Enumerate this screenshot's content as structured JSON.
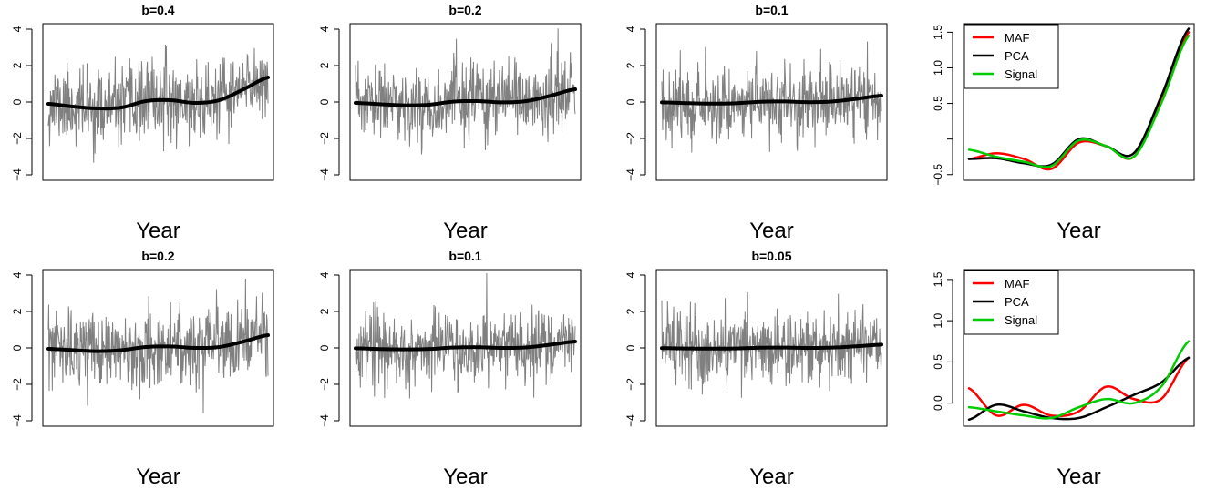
{
  "chart_data": [
    {
      "type": "line",
      "title": "b=0.4",
      "xlabel": "Year",
      "ylim": [
        -4.3,
        4.3
      ],
      "yticks": [
        "4",
        "2",
        "0",
        "−2",
        "−4"
      ],
      "series": [
        {
          "role": "noisy",
          "color": "#808080",
          "values": [],
          "noise_sd": 1.05,
          "seed": 11
        },
        {
          "role": "smooth",
          "color": "#000000",
          "values": [
            -0.1,
            -0.25,
            -0.35,
            -0.3,
            0.05,
            0.1,
            -0.05,
            0.1,
            0.7,
            1.35
          ]
        }
      ]
    },
    {
      "type": "line",
      "title": "b=0.2",
      "xlabel": "Year",
      "ylim": [
        -4.3,
        4.3
      ],
      "yticks": [
        "4",
        "2",
        "0",
        "−2",
        "−4"
      ],
      "series": [
        {
          "role": "noisy",
          "color": "#808080",
          "values": [],
          "noise_sd": 1.05,
          "seed": 23
        },
        {
          "role": "smooth",
          "color": "#000000",
          "values": [
            -0.05,
            -0.12,
            -0.18,
            -0.15,
            0.02,
            0.05,
            -0.02,
            0.05,
            0.35,
            0.7
          ]
        }
      ]
    },
    {
      "type": "line",
      "title": "b=0.1",
      "xlabel": "Year",
      "ylim": [
        -4.3,
        4.3
      ],
      "yticks": [
        "4",
        "2",
        "0",
        "−2",
        "−4"
      ],
      "series": [
        {
          "role": "noisy",
          "color": "#808080",
          "values": [],
          "noise_sd": 1.0,
          "seed": 37
        },
        {
          "role": "smooth",
          "color": "#000000",
          "values": [
            -0.02,
            -0.06,
            -0.09,
            -0.07,
            0.01,
            0.03,
            -0.01,
            0.03,
            0.18,
            0.35
          ]
        }
      ]
    },
    {
      "type": "line",
      "title": "",
      "xlabel": "Year",
      "ylim": [
        -0.6,
        1.6
      ],
      "yticks": [
        "1.5",
        "1.0",
        "0.5",
        "",
        "−0.5"
      ],
      "legend": {
        "position": "top-left",
        "entries": [
          "MAF",
          "PCA",
          "Signal"
        ]
      },
      "series": [
        {
          "name": "MAF",
          "color": "#ff0000",
          "values": [
            -0.28,
            -0.2,
            -0.28,
            -0.42,
            -0.05,
            -0.1,
            -0.25,
            0.55,
            1.5
          ]
        },
        {
          "name": "PCA",
          "color": "#000000",
          "values": [
            -0.28,
            -0.27,
            -0.34,
            -0.36,
            0.0,
            -0.1,
            -0.2,
            0.6,
            1.55
          ]
        },
        {
          "name": "Signal",
          "color": "#00cc00",
          "values": [
            -0.15,
            -0.25,
            -0.32,
            -0.38,
            -0.02,
            -0.1,
            -0.25,
            0.5,
            1.45
          ]
        }
      ]
    },
    {
      "type": "line",
      "title": "b=0.2",
      "xlabel": "Year",
      "ylim": [
        -4.3,
        4.3
      ],
      "yticks": [
        "4",
        "2",
        "0",
        "−2",
        "−4"
      ],
      "series": [
        {
          "role": "noisy",
          "color": "#808080",
          "values": [],
          "noise_sd": 1.05,
          "seed": 53
        },
        {
          "role": "smooth",
          "color": "#000000",
          "values": [
            -0.05,
            -0.12,
            -0.18,
            -0.12,
            0.05,
            0.08,
            0.0,
            0.05,
            0.35,
            0.7
          ]
        }
      ]
    },
    {
      "type": "line",
      "title": "b=0.1",
      "xlabel": "Year",
      "ylim": [
        -4.3,
        4.3
      ],
      "yticks": [
        "4",
        "2",
        "0",
        "−2",
        "−4"
      ],
      "series": [
        {
          "role": "noisy",
          "color": "#808080",
          "values": [],
          "noise_sd": 1.0,
          "seed": 67
        },
        {
          "role": "smooth",
          "color": "#000000",
          "values": [
            -0.02,
            -0.06,
            -0.08,
            -0.06,
            0.02,
            0.04,
            0.0,
            0.03,
            0.18,
            0.35
          ]
        }
      ]
    },
    {
      "type": "line",
      "title": "b=0.05",
      "xlabel": "Year",
      "ylim": [
        -4.3,
        4.3
      ],
      "yticks": [
        "4",
        "2",
        "0",
        "−2",
        "−4"
      ],
      "series": [
        {
          "role": "noisy",
          "color": "#808080",
          "values": [],
          "noise_sd": 1.0,
          "seed": 79
        },
        {
          "role": "smooth",
          "color": "#000000",
          "values": [
            -0.01,
            -0.03,
            -0.04,
            -0.03,
            0.01,
            0.02,
            0.0,
            0.02,
            0.09,
            0.18
          ]
        }
      ]
    },
    {
      "type": "line",
      "title": "",
      "xlabel": "Year",
      "ylim": [
        -0.28,
        1.6
      ],
      "yticks": [
        "1.5",
        "1.0",
        "0.5",
        "0.0"
      ],
      "legend": {
        "position": "top-left",
        "entries": [
          "MAF",
          "PCA",
          "Signal"
        ]
      },
      "series": [
        {
          "name": "MAF",
          "color": "#ff0000",
          "values": [
            0.18,
            -0.15,
            -0.02,
            -0.15,
            -0.1,
            0.2,
            0.05,
            0.05,
            0.55
          ]
        },
        {
          "name": "PCA",
          "color": "#000000",
          "values": [
            -0.2,
            -0.02,
            -0.1,
            -0.18,
            -0.18,
            -0.05,
            0.1,
            0.25,
            0.55
          ]
        },
        {
          "name": "Signal",
          "color": "#00cc00",
          "values": [
            -0.05,
            -0.1,
            -0.15,
            -0.18,
            -0.05,
            0.05,
            0.0,
            0.2,
            0.75
          ]
        }
      ]
    }
  ]
}
